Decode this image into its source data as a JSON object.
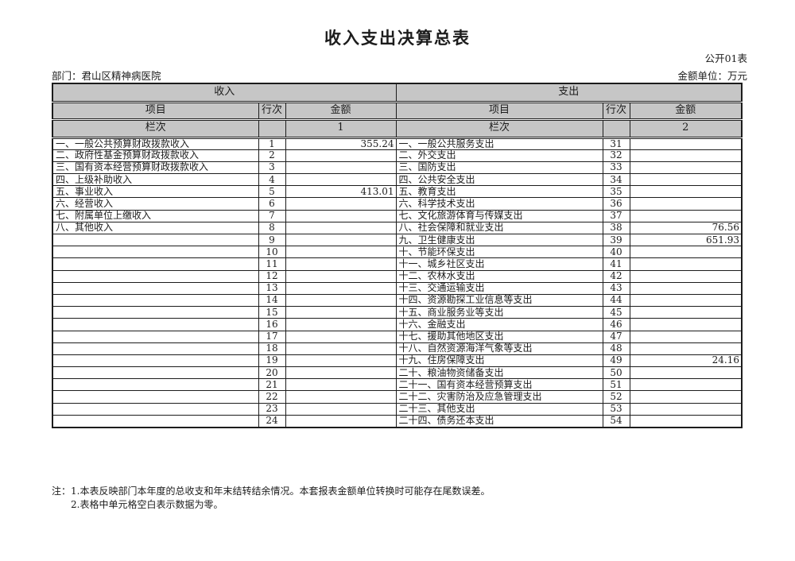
{
  "page": {
    "title": "收入支出决算总表",
    "form_code": "公开01表",
    "department_label": "部门：君山区精神病医院",
    "unit_label": "金额单位：万元"
  },
  "table": {
    "income_header": "收入",
    "expense_header": "支出",
    "col_item": "项目",
    "col_line": "行次",
    "col_amount": "金额",
    "col_index_label": "栏次",
    "income_col_index": "1",
    "expense_col_index": "2",
    "rows": [
      {
        "income_item": "一、一般公共预算财政拨款收入",
        "income_line": "1",
        "income_amount": "355.24",
        "expense_item": "一、一般公共服务支出",
        "expense_line": "31",
        "expense_amount": ""
      },
      {
        "income_item": "二、政府性基金预算财政拨款收入",
        "income_line": "2",
        "income_amount": "",
        "expense_item": "二、外交支出",
        "expense_line": "32",
        "expense_amount": ""
      },
      {
        "income_item": "三、国有资本经营预算财政拨款收入",
        "income_line": "3",
        "income_amount": "",
        "expense_item": "三、国防支出",
        "expense_line": "33",
        "expense_amount": ""
      },
      {
        "income_item": "四、上级补助收入",
        "income_line": "4",
        "income_amount": "",
        "expense_item": "四、公共安全支出",
        "expense_line": "34",
        "expense_amount": ""
      },
      {
        "income_item": "五、事业收入",
        "income_line": "5",
        "income_amount": "413.01",
        "expense_item": "五、教育支出",
        "expense_line": "35",
        "expense_amount": ""
      },
      {
        "income_item": "六、经营收入",
        "income_line": "6",
        "income_amount": "",
        "expense_item": "六、科学技术支出",
        "expense_line": "36",
        "expense_amount": ""
      },
      {
        "income_item": "七、附属单位上缴收入",
        "income_line": "7",
        "income_amount": "",
        "expense_item": "七、文化旅游体育与传媒支出",
        "expense_line": "37",
        "expense_amount": ""
      },
      {
        "income_item": "八、其他收入",
        "income_line": "8",
        "income_amount": "",
        "expense_item": "八、社会保障和就业支出",
        "expense_line": "38",
        "expense_amount": "76.56"
      },
      {
        "income_item": "",
        "income_line": "9",
        "income_amount": "",
        "expense_item": "九、卫生健康支出",
        "expense_line": "39",
        "expense_amount": "651.93"
      },
      {
        "income_item": "",
        "income_line": "10",
        "income_amount": "",
        "expense_item": "十、节能环保支出",
        "expense_line": "40",
        "expense_amount": ""
      },
      {
        "income_item": "",
        "income_line": "11",
        "income_amount": "",
        "expense_item": "十一、城乡社区支出",
        "expense_line": "41",
        "expense_amount": ""
      },
      {
        "income_item": "",
        "income_line": "12",
        "income_amount": "",
        "expense_item": "十二、农林水支出",
        "expense_line": "42",
        "expense_amount": ""
      },
      {
        "income_item": "",
        "income_line": "13",
        "income_amount": "",
        "expense_item": "十三、交通运输支出",
        "expense_line": "43",
        "expense_amount": ""
      },
      {
        "income_item": "",
        "income_line": "14",
        "income_amount": "",
        "expense_item": "十四、资源勘探工业信息等支出",
        "expense_line": "44",
        "expense_amount": ""
      },
      {
        "income_item": "",
        "income_line": "15",
        "income_amount": "",
        "expense_item": "十五、商业服务业等支出",
        "expense_line": "45",
        "expense_amount": ""
      },
      {
        "income_item": "",
        "income_line": "16",
        "income_amount": "",
        "expense_item": "十六、金融支出",
        "expense_line": "46",
        "expense_amount": ""
      },
      {
        "income_item": "",
        "income_line": "17",
        "income_amount": "",
        "expense_item": "十七、援助其他地区支出",
        "expense_line": "47",
        "expense_amount": ""
      },
      {
        "income_item": "",
        "income_line": "18",
        "income_amount": "",
        "expense_item": "十八、自然资源海洋气象等支出",
        "expense_line": "48",
        "expense_amount": ""
      },
      {
        "income_item": "",
        "income_line": "19",
        "income_amount": "",
        "expense_item": "十九、住房保障支出",
        "expense_line": "49",
        "expense_amount": "24.16"
      },
      {
        "income_item": "",
        "income_line": "20",
        "income_amount": "",
        "expense_item": "二十、粮油物资储备支出",
        "expense_line": "50",
        "expense_amount": ""
      },
      {
        "income_item": "",
        "income_line": "21",
        "income_amount": "",
        "expense_item": "二十一、国有资本经营预算支出",
        "expense_line": "51",
        "expense_amount": ""
      },
      {
        "income_item": "",
        "income_line": "22",
        "income_amount": "",
        "expense_item": "二十二、灾害防治及应急管理支出",
        "expense_line": "52",
        "expense_amount": ""
      },
      {
        "income_item": "",
        "income_line": "23",
        "income_amount": "",
        "expense_item": "二十三、其他支出",
        "expense_line": "53",
        "expense_amount": ""
      },
      {
        "income_item": "",
        "income_line": "24",
        "income_amount": "",
        "expense_item": "二十四、债务还本支出",
        "expense_line": "54",
        "expense_amount": ""
      }
    ]
  },
  "notes": {
    "prefix": "注：",
    "line1": "1.本表反映部门本年度的总收支和年末结转结余情况。本套报表金额单位转换时可能存在尾数误差。",
    "line2": "2.表格中单元格空白表示数据为零。"
  }
}
